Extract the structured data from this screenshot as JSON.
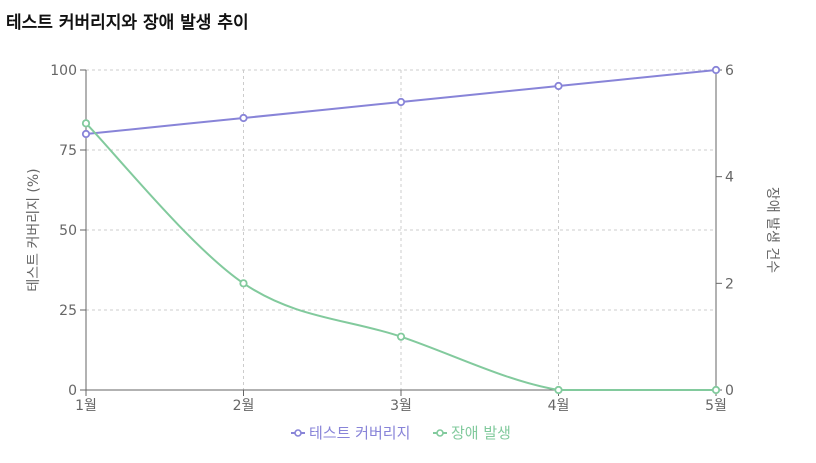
{
  "title": "테스트 커버리지와 장애 발생 추이",
  "colors": {
    "coverage": "#8884d8",
    "incidents": "#82ca9d",
    "axis": "#666666",
    "grid": "#cccccc"
  },
  "chart_data": {
    "type": "line",
    "categories": [
      "1월",
      "2월",
      "3월",
      "4월",
      "5월"
    ],
    "series": [
      {
        "name": "테스트 커버리지",
        "axis": "left",
        "values": [
          80,
          85,
          90,
          95,
          100
        ]
      },
      {
        "name": "장애 발생",
        "axis": "right",
        "values": [
          5,
          2,
          1,
          0,
          0
        ]
      }
    ],
    "y_left": {
      "label": "테스트 커버리지 (%)",
      "ylim": [
        0,
        100
      ],
      "ticks": [
        "0",
        "25",
        "50",
        "75",
        "100"
      ]
    },
    "y_right": {
      "label": "장애 발생 건수",
      "ylim": [
        0,
        6
      ],
      "ticks": [
        "0",
        "2",
        "4",
        "6"
      ]
    },
    "grid": true,
    "legend": "bottom"
  }
}
